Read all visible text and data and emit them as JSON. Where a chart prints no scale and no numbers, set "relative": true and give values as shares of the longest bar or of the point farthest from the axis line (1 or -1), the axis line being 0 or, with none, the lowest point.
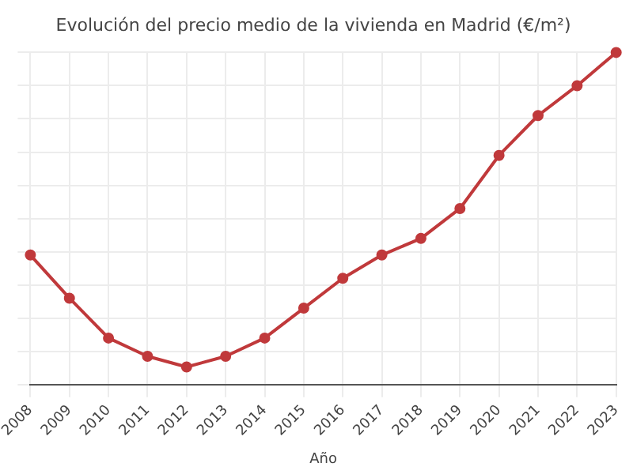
{
  "chart_data": {
    "type": "line",
    "title": "Evolución del precio medio de la vivienda en Madrid (€/m²)",
    "xlabel": "Año",
    "relative": true,
    "grid": true,
    "marker": "circle",
    "line_style": "solid",
    "categories": [
      "2008",
      "2009",
      "2010",
      "2011",
      "2012",
      "2013",
      "2014",
      "2015",
      "2016",
      "2017",
      "2018",
      "2019",
      "2020",
      "2021",
      "2022",
      "2023"
    ],
    "series": [
      {
        "color": "#c0393b",
        "values": [
          0.39,
          0.26,
          0.14,
          0.085,
          0.053,
          0.085,
          0.14,
          0.23,
          0.32,
          0.39,
          0.44,
          0.53,
          0.69,
          0.81,
          0.9,
          1
        ]
      }
    ]
  }
}
